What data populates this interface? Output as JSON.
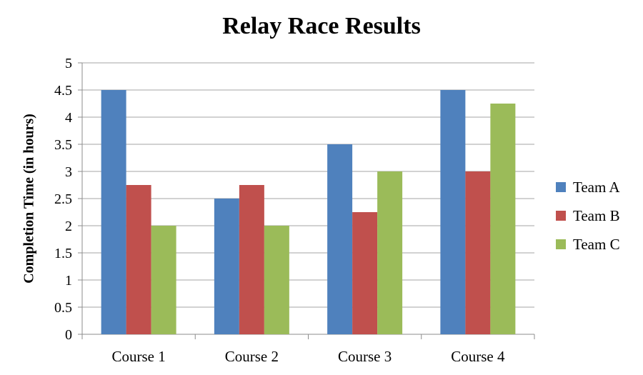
{
  "chart_data": {
    "type": "bar",
    "title": "Relay Race Results",
    "xlabel": "",
    "ylabel": "Completion Time (in hours)",
    "ylim": [
      0,
      5
    ],
    "yticks": [
      "0",
      "0.5",
      "1",
      "1.5",
      "2",
      "2.5",
      "3",
      "3.5",
      "4",
      "4.5",
      "5"
    ],
    "grid": true,
    "legend": "right",
    "categories": [
      "Course 1",
      "Course 2",
      "Course 3",
      "Course 4"
    ],
    "series": [
      {
        "name": "Team A",
        "color": "#4F81BD",
        "values": [
          4.5,
          2.5,
          3.5,
          4.5
        ]
      },
      {
        "name": "Team B",
        "color": "#C0504D",
        "values": [
          2.75,
          2.75,
          2.25,
          3.0
        ]
      },
      {
        "name": "Team C",
        "color": "#9BBB59",
        "values": [
          2.0,
          2.0,
          3.0,
          4.25
        ]
      }
    ]
  }
}
